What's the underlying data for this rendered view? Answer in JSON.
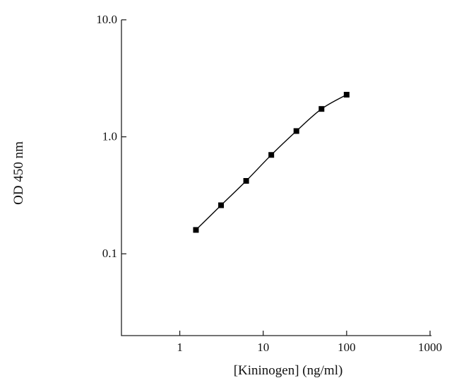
{
  "chart_data": {
    "type": "line",
    "x_label": "[Kininogen] (ng/ml)",
    "y_label": "OD 450 nm",
    "x": [
      1.5625,
      3.125,
      6.25,
      12.5,
      25,
      50,
      100
    ],
    "values": [
      0.16,
      0.26,
      0.42,
      0.7,
      1.12,
      1.73,
      2.29
    ],
    "color": "#000000",
    "marker": "square",
    "xscale": "log",
    "yscale": "log",
    "xlim": [
      0.2,
      1000
    ],
    "ylim": [
      0.02,
      10
    ],
    "xticks": [
      1,
      10,
      100,
      1000
    ],
    "yticks": [
      0.1,
      {
        "value": 1,
        "label": "1.0"
      },
      {
        "value": 10,
        "label": "10.0"
      }
    ]
  }
}
